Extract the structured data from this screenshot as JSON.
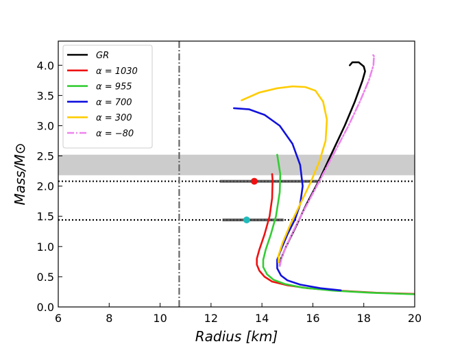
{
  "chart_data": {
    "type": "line",
    "title": "",
    "xlabel": "Radius [km]",
    "ylabel": "Mass/M⊙",
    "xlim": [
      6,
      20
    ],
    "ylim": [
      0,
      4.4
    ],
    "xticks": [
      6,
      8,
      10,
      12,
      14,
      16,
      18,
      20
    ],
    "yticks": [
      0.0,
      0.5,
      1.0,
      1.5,
      2.0,
      2.5,
      3.0,
      3.5,
      4.0
    ],
    "yticklabels": [
      "0.0",
      "0.5",
      "1.0",
      "1.5",
      "2.0",
      "2.5",
      "3.0",
      "3.5",
      "4.0"
    ],
    "legend_position": "top-left",
    "series": [
      {
        "name": "GR",
        "color": "#000000",
        "dash": "solid",
        "points": [
          [
            14.7,
            0.68
          ],
          [
            14.75,
            0.8
          ],
          [
            14.95,
            1.0
          ],
          [
            15.3,
            1.3
          ],
          [
            15.75,
            1.7
          ],
          [
            16.25,
            2.1
          ],
          [
            16.75,
            2.55
          ],
          [
            17.25,
            3.0
          ],
          [
            17.65,
            3.4
          ],
          [
            17.95,
            3.75
          ],
          [
            18.05,
            3.9
          ],
          [
            18.0,
            3.98
          ],
          [
            17.8,
            4.05
          ],
          [
            17.55,
            4.05
          ],
          [
            17.45,
            4.0
          ]
        ]
      },
      {
        "name": "α = 1030",
        "color": "#ee1111",
        "dash": "solid",
        "points": [
          [
            14.4,
            2.2
          ],
          [
            14.42,
            2.1
          ],
          [
            14.4,
            1.8
          ],
          [
            14.3,
            1.5
          ],
          [
            14.1,
            1.2
          ],
          [
            13.9,
            0.95
          ],
          [
            13.8,
            0.8
          ],
          [
            13.8,
            0.7
          ],
          [
            13.9,
            0.6
          ],
          [
            14.1,
            0.5
          ],
          [
            14.4,
            0.42
          ],
          [
            15.0,
            0.36
          ],
          [
            15.8,
            0.31
          ],
          [
            17.0,
            0.27
          ],
          [
            18.5,
            0.235
          ],
          [
            20.0,
            0.215
          ]
        ]
      },
      {
        "name": "α = 955",
        "color": "#33cc33",
        "dash": "solid",
        "points": [
          [
            14.6,
            2.52
          ],
          [
            14.72,
            2.2
          ],
          [
            14.7,
            1.9
          ],
          [
            14.55,
            1.5
          ],
          [
            14.35,
            1.2
          ],
          [
            14.15,
            0.95
          ],
          [
            14.05,
            0.78
          ],
          [
            14.05,
            0.66
          ],
          [
            14.2,
            0.54
          ],
          [
            14.45,
            0.45
          ],
          [
            14.9,
            0.38
          ],
          [
            15.6,
            0.32
          ],
          [
            16.8,
            0.27
          ],
          [
            18.3,
            0.235
          ],
          [
            20.0,
            0.21
          ]
        ]
      },
      {
        "name": "α = 700",
        "color": "#1111dd",
        "dash": "solid",
        "points": [
          [
            12.9,
            3.29
          ],
          [
            13.5,
            3.27
          ],
          [
            14.1,
            3.18
          ],
          [
            14.7,
            3.0
          ],
          [
            15.2,
            2.7
          ],
          [
            15.5,
            2.35
          ],
          [
            15.6,
            2.0
          ],
          [
            15.5,
            1.7
          ],
          [
            15.3,
            1.45
          ],
          [
            15.0,
            1.2
          ],
          [
            14.75,
            0.95
          ],
          [
            14.6,
            0.78
          ],
          [
            14.6,
            0.64
          ],
          [
            14.75,
            0.52
          ],
          [
            15.0,
            0.44
          ],
          [
            15.5,
            0.37
          ],
          [
            16.3,
            0.31
          ],
          [
            17.1,
            0.275
          ]
        ]
      },
      {
        "name": "α = 300",
        "color": "#ffcc00",
        "dash": "solid",
        "points": [
          [
            13.2,
            3.42
          ],
          [
            13.9,
            3.55
          ],
          [
            14.6,
            3.62
          ],
          [
            15.2,
            3.65
          ],
          [
            15.7,
            3.64
          ],
          [
            16.1,
            3.58
          ],
          [
            16.4,
            3.4
          ],
          [
            16.55,
            3.1
          ],
          [
            16.5,
            2.75
          ],
          [
            16.25,
            2.4
          ],
          [
            15.9,
            2.05
          ],
          [
            15.5,
            1.7
          ],
          [
            15.1,
            1.35
          ],
          [
            14.8,
            1.05
          ],
          [
            14.65,
            0.85
          ],
          [
            14.65,
            0.74
          ]
        ]
      },
      {
        "name": "α = −80",
        "color": "#ee82ee",
        "dash": "dashdot",
        "points": [
          [
            14.7,
            0.68
          ],
          [
            14.8,
            0.85
          ],
          [
            15.0,
            1.05
          ],
          [
            15.4,
            1.4
          ],
          [
            15.9,
            1.8
          ],
          [
            16.4,
            2.2
          ],
          [
            16.9,
            2.6
          ],
          [
            17.4,
            3.0
          ],
          [
            17.85,
            3.4
          ],
          [
            18.2,
            3.75
          ],
          [
            18.38,
            4.0
          ],
          [
            18.4,
            4.15
          ],
          [
            18.35,
            4.18
          ]
        ]
      }
    ],
    "bands": [
      {
        "y_from": 2.18,
        "y_to": 2.52,
        "color": "#cccccc"
      }
    ],
    "horizontal_lines": [
      {
        "y": 2.08,
        "style": "dotted",
        "color": "#000000"
      },
      {
        "y": 1.44,
        "style": "dotted",
        "color": "#000000"
      }
    ],
    "vertical_lines": [
      {
        "x": 10.75,
        "style": "dashdot",
        "color": "#666666"
      }
    ],
    "error_bars": [
      {
        "y": 2.08,
        "x_from": 12.35,
        "x_to": 16.3,
        "color": "#444444"
      },
      {
        "y": 1.44,
        "x_from": 12.45,
        "x_to": 14.85,
        "color": "#444444"
      }
    ],
    "markers": [
      {
        "x": 13.7,
        "y": 2.08,
        "color": "#ee1111"
      },
      {
        "x": 13.4,
        "y": 1.44,
        "color": "#22bbbb"
      }
    ]
  }
}
